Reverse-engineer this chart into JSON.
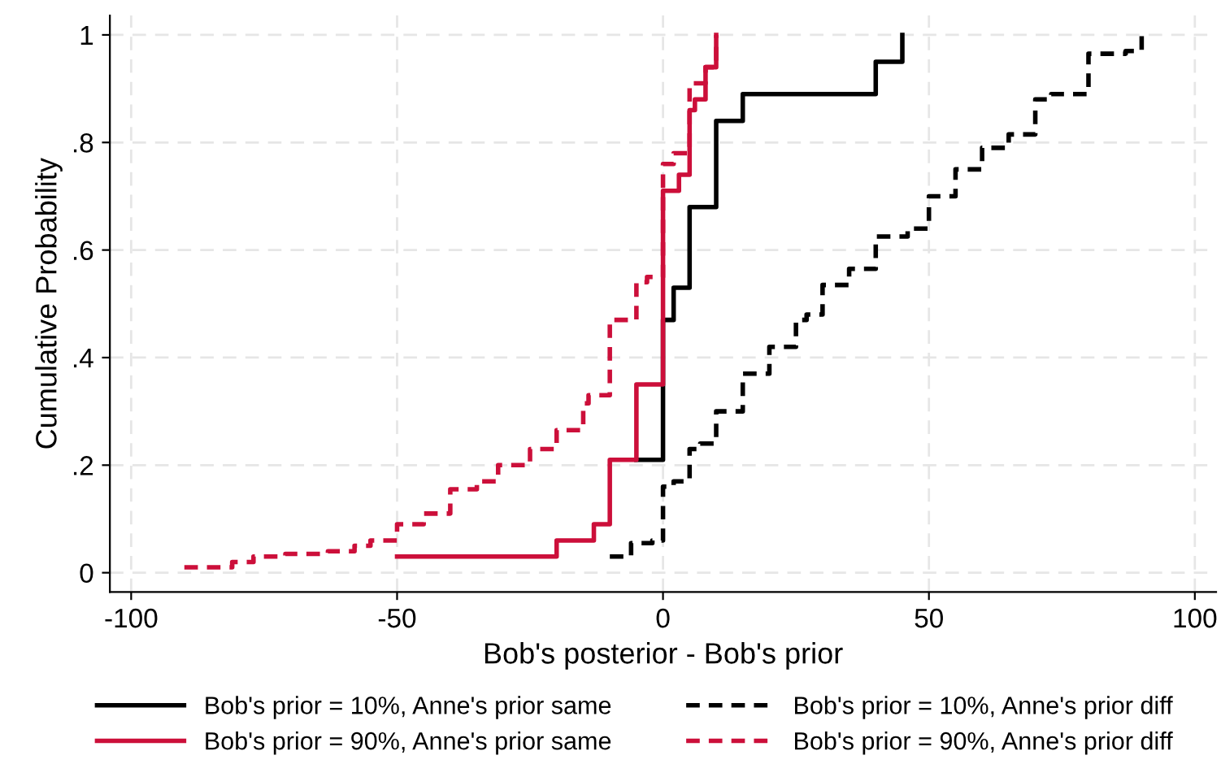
{
  "chart_data": {
    "type": "step",
    "xlabel": "Bob's posterior - Bob's prior",
    "ylabel": "Cumulative Probability",
    "xlim": [
      -104,
      104
    ],
    "xticks": [
      -100,
      -50,
      0,
      50,
      100
    ],
    "ylim": [
      -0.036,
      1.036
    ],
    "yticks": [
      0,
      {
        "value": 0.2,
        "label": ".2"
      },
      {
        "value": 0.4,
        "label": ".4"
      },
      {
        "value": 0.6,
        "label": ".6"
      },
      {
        "value": 0.8,
        "label": ".8"
      },
      1
    ],
    "grid": true,
    "legend": "bottom",
    "series": [
      {
        "name": "Bob's prior = 10%, Anne's prior same",
        "color": "#000000",
        "line_style": "solid",
        "x": [
          -5,
          0,
          2,
          5,
          10,
          15,
          40,
          45
        ],
        "values": [
          0.21,
          0.47,
          0.53,
          0.68,
          0.84,
          0.89,
          0.95,
          1.0
        ]
      },
      {
        "name": "Bob's prior = 90%, Anne's prior same",
        "color": "#cc0f3a",
        "line_style": "solid",
        "x": [
          -50,
          -20,
          -13,
          -10,
          -5,
          0,
          3,
          5,
          6,
          8,
          10
        ],
        "values": [
          0.03,
          0.06,
          0.09,
          0.21,
          0.35,
          0.71,
          0.74,
          0.86,
          0.88,
          0.94,
          1.0
        ]
      },
      {
        "name": "Bob's prior = 10%, Anne's prior diff",
        "color": "#000000",
        "line_style": "dashed",
        "x": [
          -10,
          -6,
          -2,
          0,
          2,
          5,
          7,
          10,
          15,
          20,
          25,
          27,
          30,
          35,
          40,
          46,
          50,
          55,
          60,
          65,
          70,
          73,
          80,
          87,
          90
        ],
        "values": [
          0.03,
          0.055,
          0.06,
          0.16,
          0.17,
          0.23,
          0.24,
          0.3,
          0.37,
          0.42,
          0.47,
          0.48,
          0.535,
          0.565,
          0.625,
          0.64,
          0.7,
          0.75,
          0.79,
          0.815,
          0.88,
          0.89,
          0.965,
          0.97,
          1.0
        ]
      },
      {
        "name": "Bob's prior = 90%, Anne's prior diff",
        "color": "#cc0f3a",
        "line_style": "dashed",
        "x": [
          -90,
          -81,
          -77,
          -71,
          -63,
          -58,
          -55,
          -50,
          -45,
          -40,
          -35,
          -31,
          -25,
          -20,
          -15,
          -14,
          -10,
          -5,
          -3,
          0,
          2,
          5,
          8,
          10
        ],
        "values": [
          0.01,
          0.02,
          0.03,
          0.035,
          0.04,
          0.05,
          0.06,
          0.09,
          0.11,
          0.155,
          0.17,
          0.2,
          0.23,
          0.265,
          0.315,
          0.33,
          0.47,
          0.54,
          0.55,
          0.76,
          0.78,
          0.91,
          0.94,
          1.0
        ]
      }
    ]
  }
}
